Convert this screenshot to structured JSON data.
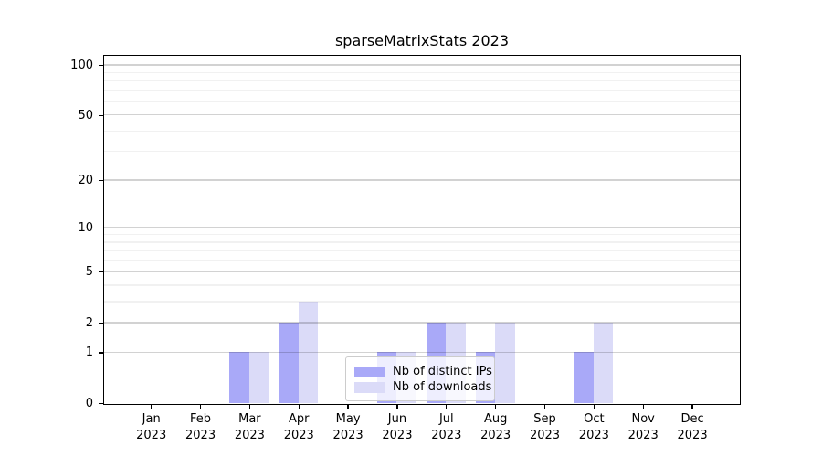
{
  "chart_data": {
    "type": "bar",
    "title": "sparseMatrixStats 2023",
    "months": [
      "Jan",
      "Feb",
      "Mar",
      "Apr",
      "May",
      "Jun",
      "Jul",
      "Aug",
      "Sep",
      "Oct",
      "Nov",
      "Dec"
    ],
    "year": "2023",
    "series": [
      {
        "name": "Nb of distinct IPs",
        "color": "#a9a9f8",
        "values": [
          0,
          0,
          1,
          2,
          0,
          1,
          2,
          1,
          0,
          1,
          0,
          0
        ]
      },
      {
        "name": "Nb of downloads",
        "color": "#dbdbf8",
        "values": [
          0,
          0,
          1,
          3,
          0,
          1,
          2,
          2,
          0,
          2,
          0,
          0
        ]
      }
    ],
    "xlabel": "",
    "ylabel": "",
    "yscale": "log1p",
    "ylim": [
      0,
      115
    ],
    "yticks": [
      100,
      50,
      20,
      10,
      5,
      2,
      1,
      0
    ],
    "yticks_minor": [
      3,
      4,
      6,
      7,
      8,
      9,
      30,
      40,
      60,
      70,
      80,
      90
    ],
    "grid": "horizontal",
    "legend_position": "lower center"
  }
}
